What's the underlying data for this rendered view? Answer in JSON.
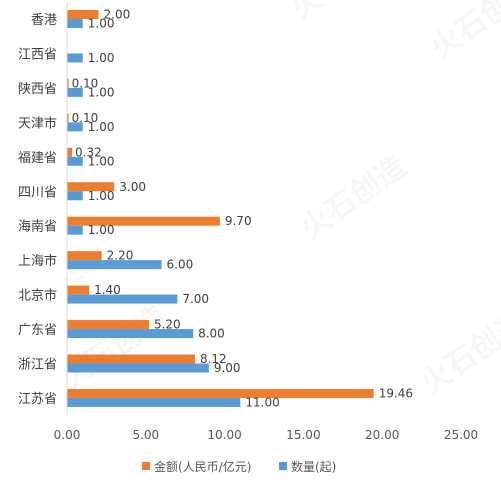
{
  "chart_data": {
    "type": "bar",
    "orientation": "horizontal",
    "categories": [
      "香港",
      "江西省",
      "陕西省",
      "天津市",
      "福建省",
      "四川省",
      "海南省",
      "上海市",
      "北京市",
      "广东省",
      "浙江省",
      "江苏省"
    ],
    "series": [
      {
        "name": "金额(人民币/亿元)",
        "color": "#ED7D31",
        "values": [
          2.0,
          null,
          0.1,
          0.1,
          0.32,
          3.0,
          9.7,
          2.2,
          1.4,
          5.2,
          8.12,
          19.46
        ],
        "labels": [
          "2.00",
          "",
          "0.10",
          "0.10",
          "0.32",
          "3.00",
          "9.70",
          "2.20",
          "1.40",
          "5.20",
          "8.12",
          "19.46"
        ]
      },
      {
        "name": "数量(起)",
        "color": "#5B9BD5",
        "values": [
          1.0,
          1.0,
          1.0,
          1.0,
          1.0,
          1.0,
          1.0,
          6.0,
          7.0,
          8.0,
          9.0,
          11.0
        ],
        "labels": [
          "1.00",
          "1.00",
          "1.00",
          "1.00",
          "1.00",
          "1.00",
          "1.00",
          "6.00",
          "7.00",
          "8.00",
          "9.00",
          "11.00"
        ]
      }
    ],
    "x_ticks": [
      "0.00",
      "5.00",
      "10.00",
      "15.00",
      "20.00",
      "25.00"
    ],
    "xlim": [
      0,
      25
    ],
    "grid": false,
    "legend_position": "bottom",
    "watermark": "火石创造"
  }
}
